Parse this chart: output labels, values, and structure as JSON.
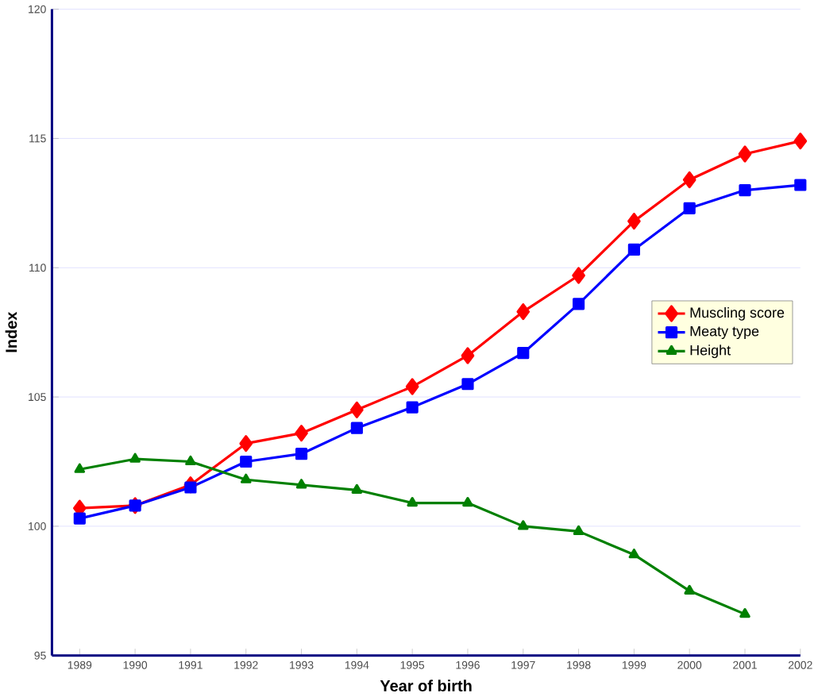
{
  "chart_data": {
    "type": "line",
    "xlabel": "Year of birth",
    "ylabel": "Index",
    "categories": [
      "1989",
      "1990",
      "1991",
      "1992",
      "1993",
      "1994",
      "1995",
      "1996",
      "1997",
      "1998",
      "1999",
      "2000",
      "2001",
      "2002"
    ],
    "series": [
      {
        "name": "Muscling score",
        "color": "#ff0000",
        "marker": "diamond",
        "values": [
          100.7,
          100.8,
          101.6,
          103.2,
          103.6,
          104.5,
          105.4,
          106.6,
          108.3,
          109.7,
          111.8,
          113.4,
          114.4,
          114.9
        ]
      },
      {
        "name": "Meaty type",
        "color": "#0000ff",
        "marker": "square",
        "values": [
          100.3,
          100.8,
          101.5,
          102.5,
          102.8,
          103.8,
          104.6,
          105.5,
          106.7,
          108.6,
          110.7,
          112.3,
          113.0,
          113.2
        ]
      },
      {
        "name": "Height",
        "color": "#008000",
        "marker": "triangle",
        "values": [
          102.2,
          102.6,
          102.5,
          101.8,
          101.6,
          101.4,
          100.9,
          100.9,
          100.0,
          99.8,
          98.9,
          97.5,
          96.6,
          null
        ]
      }
    ],
    "ylim": [
      95,
      120
    ],
    "yticks": [
      95,
      100,
      105,
      110,
      115,
      120
    ],
    "grid": "y",
    "legend": "right",
    "line_style": "solid"
  }
}
